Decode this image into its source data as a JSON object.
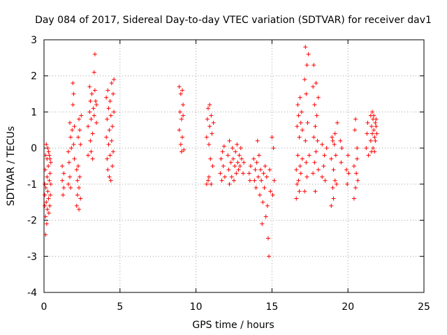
{
  "chart_data": {
    "type": "scatter",
    "title": "Day 084 of 2017, Sidereal Day-to-day VTEC variation (SDTVAR) for receiver dav1",
    "xlabel": "GPS time / hours",
    "ylabel": "SDTVAR / TECUs",
    "xlim": [
      0,
      25
    ],
    "ylim": [
      -4,
      3
    ],
    "xticks": [
      0,
      5,
      10,
      15,
      20,
      25
    ],
    "yticks": [
      -4,
      -3,
      -2,
      -1,
      0,
      1,
      2,
      3
    ],
    "xtick_labels": [
      "0",
      "5",
      "10",
      "15",
      "20",
      "25"
    ],
    "ytick_labels": [
      "-4",
      "-3",
      "-2",
      "-1",
      "0",
      "1",
      "2",
      "3"
    ],
    "grid": true,
    "marker": "+",
    "color": "#ff0000",
    "series": [
      {
        "name": "dav1",
        "points": [
          [
            0.05,
            -1.0
          ],
          [
            0.05,
            -1.3
          ],
          [
            0.05,
            -1.6
          ],
          [
            0.08,
            -0.6
          ],
          [
            0.1,
            -2.4
          ],
          [
            0.1,
            -1.9
          ],
          [
            0.1,
            -0.2
          ],
          [
            0.12,
            -1.1
          ],
          [
            0.15,
            -1.5
          ],
          [
            0.15,
            0.1
          ],
          [
            0.18,
            -2.1
          ],
          [
            0.2,
            -0.8
          ],
          [
            0.2,
            -0.3
          ],
          [
            0.22,
            -1.7
          ],
          [
            0.25,
            -1.2
          ],
          [
            0.25,
            0.0
          ],
          [
            0.28,
            -0.5
          ],
          [
            0.3,
            -1.4
          ],
          [
            0.3,
            -0.1
          ],
          [
            0.32,
            -1.8
          ],
          [
            0.35,
            -0.9
          ],
          [
            0.35,
            -0.2
          ],
          [
            0.38,
            -1.6
          ],
          [
            0.4,
            -0.7
          ],
          [
            0.4,
            -0.3
          ],
          [
            0.42,
            -1.3
          ],
          [
            0.45,
            -1.0
          ],
          [
            0.45,
            -0.4
          ],
          [
            1.2,
            -0.5
          ],
          [
            1.2,
            -0.9
          ],
          [
            1.25,
            -1.3
          ],
          [
            1.3,
            -0.7
          ],
          [
            1.3,
            -1.1
          ],
          [
            1.6,
            -0.1
          ],
          [
            1.6,
            -1.0
          ],
          [
            1.65,
            -0.4
          ],
          [
            1.7,
            -0.8
          ],
          [
            1.7,
            0.7
          ],
          [
            1.75,
            0.3
          ],
          [
            1.75,
            -1.1
          ],
          [
            1.8,
            0.0
          ],
          [
            1.85,
            0.5
          ],
          [
            1.9,
            1.2
          ],
          [
            1.9,
            1.8
          ],
          [
            1.95,
            1.5
          ],
          [
            1.95,
            0.1
          ],
          [
            2.0,
            0.6
          ],
          [
            2.0,
            -0.3
          ],
          [
            2.15,
            -1.6
          ],
          [
            2.15,
            -0.6
          ],
          [
            2.2,
            -1.3
          ],
          [
            2.2,
            -0.9
          ],
          [
            2.25,
            0.3
          ],
          [
            2.25,
            -0.5
          ],
          [
            2.3,
            -1.7
          ],
          [
            2.3,
            -1.1
          ],
          [
            2.3,
            0.8
          ],
          [
            2.35,
            -0.8
          ],
          [
            2.35,
            0.5
          ],
          [
            2.4,
            -1.4
          ],
          [
            2.4,
            0.1
          ],
          [
            2.45,
            0.9
          ],
          [
            2.9,
            -0.2
          ],
          [
            2.9,
            0.6
          ],
          [
            3.0,
            1.7
          ],
          [
            3.0,
            1.0
          ],
          [
            3.05,
            0.2
          ],
          [
            3.05,
            1.3
          ],
          [
            3.1,
            0.8
          ],
          [
            3.1,
            -0.1
          ],
          [
            3.15,
            1.5
          ],
          [
            3.2,
            0.4
          ],
          [
            3.2,
            -0.3
          ],
          [
            3.25,
            1.1
          ],
          [
            3.3,
            2.1
          ],
          [
            3.3,
            0.9
          ],
          [
            3.35,
            1.6
          ],
          [
            3.35,
            2.6
          ],
          [
            3.4,
            1.3
          ],
          [
            3.45,
            0.7
          ],
          [
            3.45,
            1.2
          ],
          [
            4.1,
            0.3
          ],
          [
            4.1,
            1.4
          ],
          [
            4.15,
            -0.3
          ],
          [
            4.15,
            0.8
          ],
          [
            4.2,
            1.6
          ],
          [
            4.2,
            -0.6
          ],
          [
            4.25,
            0.1
          ],
          [
            4.25,
            1.1
          ],
          [
            4.3,
            -0.8
          ],
          [
            4.3,
            0.5
          ],
          [
            4.35,
            1.3
          ],
          [
            4.35,
            -0.2
          ],
          [
            4.4,
            0.9
          ],
          [
            4.4,
            -0.9
          ],
          [
            4.45,
            0.2
          ],
          [
            4.45,
            1.8
          ],
          [
            4.5,
            -0.5
          ],
          [
            4.5,
            0.6
          ],
          [
            4.55,
            1.5
          ],
          [
            4.55,
            -0.1
          ],
          [
            4.6,
            1.0
          ],
          [
            4.6,
            1.9
          ],
          [
            8.9,
            1.7
          ],
          [
            8.9,
            0.5
          ],
          [
            8.95,
            1.0
          ],
          [
            9.0,
            1.5
          ],
          [
            9.0,
            0.1
          ],
          [
            9.05,
            -0.1
          ],
          [
            9.05,
            0.8
          ],
          [
            9.1,
            1.6
          ],
          [
            9.1,
            0.3
          ],
          [
            9.15,
            1.2
          ],
          [
            9.15,
            0.9
          ],
          [
            9.2,
            -0.05
          ],
          [
            10.7,
            -1.0
          ],
          [
            10.7,
            0.3
          ],
          [
            10.75,
            0.8
          ],
          [
            10.8,
            -0.9
          ],
          [
            10.8,
            1.1
          ],
          [
            10.85,
            0.1
          ],
          [
            10.85,
            -0.8
          ],
          [
            10.9,
            0.6
          ],
          [
            10.9,
            1.2
          ],
          [
            10.95,
            -0.3
          ],
          [
            11.0,
            0.9
          ],
          [
            11.0,
            -1.0
          ],
          [
            11.05,
            0.4
          ],
          [
            11.1,
            -0.5
          ],
          [
            11.15,
            0.7
          ],
          [
            11.6,
            -0.7
          ],
          [
            11.65,
            -0.3
          ],
          [
            11.7,
            -0.9
          ],
          [
            11.75,
            -0.1
          ],
          [
            11.8,
            -0.5
          ],
          [
            11.85,
            0.05
          ],
          [
            11.9,
            -0.8
          ],
          [
            12.1,
            -0.2
          ],
          [
            12.15,
            -0.6
          ],
          [
            12.2,
            -1.0
          ],
          [
            12.2,
            0.2
          ],
          [
            12.3,
            -0.4
          ],
          [
            12.35,
            -0.8
          ],
          [
            12.4,
            0.0
          ],
          [
            12.45,
            -0.3
          ],
          [
            12.5,
            -0.9
          ],
          [
            12.55,
            -0.5
          ],
          [
            12.6,
            -0.1
          ],
          [
            12.65,
            -0.7
          ],
          [
            12.7,
            0.1
          ],
          [
            12.75,
            -0.4
          ],
          [
            12.8,
            -0.6
          ],
          [
            12.85,
            -0.2
          ],
          [
            12.9,
            -0.5
          ],
          [
            12.95,
            0.0
          ],
          [
            13.0,
            -0.3
          ],
          [
            13.1,
            -0.7
          ],
          [
            13.15,
            -0.4
          ],
          [
            13.5,
            -0.7
          ],
          [
            13.55,
            -0.9
          ],
          [
            13.6,
            -0.5
          ],
          [
            13.8,
            -0.3
          ],
          [
            13.85,
            -0.9
          ],
          [
            13.9,
            -0.6
          ],
          [
            13.95,
            -1.1
          ],
          [
            14.0,
            -0.4
          ],
          [
            14.05,
            0.2
          ],
          [
            14.1,
            -0.8
          ],
          [
            14.15,
            -0.2
          ],
          [
            14.2,
            -1.3
          ],
          [
            14.25,
            -0.6
          ],
          [
            14.3,
            -0.9
          ],
          [
            14.35,
            -2.1
          ],
          [
            14.4,
            -1.5
          ],
          [
            14.45,
            -0.7
          ],
          [
            14.5,
            -1.1
          ],
          [
            14.55,
            -0.5
          ],
          [
            14.6,
            -1.9
          ],
          [
            14.65,
            -0.8
          ],
          [
            14.7,
            -1.6
          ],
          [
            14.75,
            -2.5
          ],
          [
            14.8,
            -3.0
          ],
          [
            14.85,
            -0.6
          ],
          [
            14.9,
            -1.2
          ],
          [
            15.0,
            0.3
          ],
          [
            15.05,
            -1.3
          ],
          [
            15.1,
            0.0
          ],
          [
            15.15,
            -0.9
          ],
          [
            16.6,
            -1.4
          ],
          [
            16.6,
            -0.6
          ],
          [
            16.65,
            -1.0
          ],
          [
            16.65,
            0.6
          ],
          [
            16.7,
            -0.2
          ],
          [
            16.7,
            1.2
          ],
          [
            16.75,
            -0.9
          ],
          [
            16.75,
            0.9
          ],
          [
            16.8,
            0.3
          ],
          [
            16.8,
            -1.2
          ],
          [
            16.85,
            1.4
          ],
          [
            16.85,
            -0.5
          ],
          [
            16.9,
            0.7
          ],
          [
            16.9,
            -0.7
          ],
          [
            16.95,
            1.0
          ],
          [
            17.0,
            -0.3
          ],
          [
            17.0,
            0.5
          ],
          [
            17.15,
            1.9
          ],
          [
            17.15,
            -1.2
          ],
          [
            17.2,
            2.8
          ],
          [
            17.2,
            0.2
          ],
          [
            17.25,
            1.5
          ],
          [
            17.25,
            -0.4
          ],
          [
            17.3,
            2.3
          ],
          [
            17.3,
            -0.8
          ],
          [
            17.35,
            0.7
          ],
          [
            17.4,
            2.6
          ],
          [
            17.45,
            -0.2
          ],
          [
            17.7,
            -0.7
          ],
          [
            17.7,
            1.7
          ],
          [
            17.75,
            0.3
          ],
          [
            17.75,
            2.3
          ],
          [
            17.8,
            -0.4
          ],
          [
            17.8,
            1.2
          ],
          [
            17.85,
            0.6
          ],
          [
            17.85,
            -1.2
          ],
          [
            17.9,
            1.8
          ],
          [
            17.9,
            -0.1
          ],
          [
            17.95,
            0.9
          ],
          [
            18.0,
            0.2
          ],
          [
            18.05,
            -0.6
          ],
          [
            18.05,
            1.4
          ],
          [
            18.3,
            -0.8
          ],
          [
            18.3,
            0.1
          ],
          [
            18.4,
            -0.5
          ],
          [
            18.45,
            -0.2
          ],
          [
            18.5,
            -0.9
          ],
          [
            18.6,
            0.0
          ],
          [
            18.9,
            -1.6
          ],
          [
            18.9,
            -0.3
          ],
          [
            18.95,
            0.3
          ],
          [
            19.0,
            -1.1
          ],
          [
            19.0,
            0.2
          ],
          [
            19.05,
            -0.6
          ],
          [
            19.05,
            -1.4
          ],
          [
            19.1,
            0.1
          ],
          [
            19.15,
            -0.9
          ],
          [
            19.15,
            0.4
          ],
          [
            19.2,
            -0.2
          ],
          [
            19.25,
            -1.0
          ],
          [
            19.3,
            0.7
          ],
          [
            19.5,
            0.2
          ],
          [
            19.55,
            -0.4
          ],
          [
            19.6,
            0.0
          ],
          [
            19.9,
            -0.6
          ],
          [
            19.95,
            -1.0
          ],
          [
            20.0,
            -0.2
          ],
          [
            20.05,
            -0.7
          ],
          [
            20.4,
            -1.4
          ],
          [
            20.4,
            -0.5
          ],
          [
            20.45,
            0.5
          ],
          [
            20.5,
            -1.1
          ],
          [
            20.5,
            0.8
          ],
          [
            20.55,
            -0.7
          ],
          [
            20.6,
            0.0
          ],
          [
            20.6,
            -0.3
          ],
          [
            20.65,
            -0.9
          ],
          [
            21.2,
            0.0
          ],
          [
            21.25,
            0.4
          ],
          [
            21.3,
            0.7
          ],
          [
            21.35,
            -0.2
          ],
          [
            21.5,
            0.9
          ],
          [
            21.5,
            0.2
          ],
          [
            21.55,
            0.6
          ],
          [
            21.55,
            -0.1
          ],
          [
            21.6,
            1.0
          ],
          [
            21.6,
            0.4
          ],
          [
            21.65,
            0.8
          ],
          [
            21.65,
            0.0
          ],
          [
            21.7,
            0.5
          ],
          [
            21.7,
            0.9
          ],
          [
            21.75,
            0.3
          ],
          [
            21.75,
            -0.1
          ],
          [
            21.8,
            0.7
          ],
          [
            21.8,
            0.2
          ],
          [
            21.85,
            0.6
          ],
          [
            21.85,
            0.8
          ],
          [
            21.9,
            0.4
          ]
        ]
      }
    ]
  }
}
